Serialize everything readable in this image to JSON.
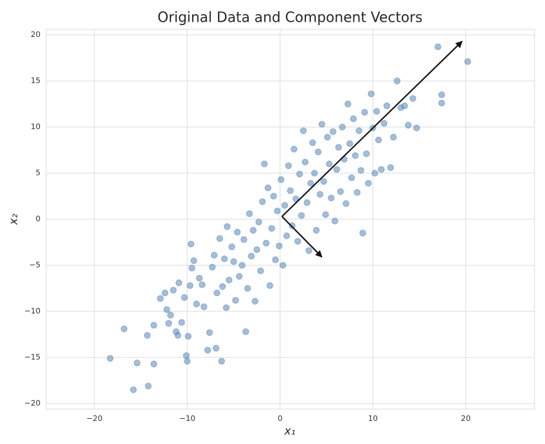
{
  "chart_data": {
    "type": "scatter",
    "title": "Original Data and Component Vectors",
    "x_label": "x₁",
    "y_label": "x₂",
    "xlim": [
      -25.2,
      27.4
    ],
    "ylim": [
      -20.6,
      20.6
    ],
    "xticks": [
      {
        "value": -20,
        "label": "−20"
      },
      {
        "value": -10,
        "label": "−10"
      },
      0,
      10,
      20
    ],
    "yticks": [
      {
        "value": -20,
        "label": "−20"
      },
      {
        "value": -15,
        "label": "−15"
      },
      {
        "value": -10,
        "label": "−10"
      },
      {
        "value": -5,
        "label": "−5"
      },
      0,
      5,
      10,
      15,
      20
    ],
    "grid": true,
    "color": "#4a7db4",
    "alpha": 0.5,
    "x": [
      -18.3,
      -16.8,
      -15.4,
      -15.8,
      -14.2,
      -14.3,
      -13.6,
      -13.6,
      -12.9,
      -12.4,
      -12.2,
      -12.0,
      -11.8,
      -11.2,
      -11.0,
      -11.5,
      -10.9,
      -10.6,
      -10.3,
      -10.1,
      -10.0,
      -9.9,
      -9.7,
      -9.5,
      -9.3,
      -9.6,
      -9.0,
      -8.7,
      -8.4,
      -8.2,
      -7.8,
      -7.6,
      -7.3,
      -7.1,
      -6.9,
      -6.8,
      -6.5,
      -6.3,
      -6.2,
      -6.0,
      -5.8,
      -5.7,
      -5.5,
      -5.2,
      -5.0,
      -4.8,
      -4.6,
      -4.4,
      -4.1,
      -3.9,
      -3.7,
      -3.5,
      -3.3,
      -3.1,
      -2.9,
      -2.7,
      -2.5,
      -2.3,
      -2.1,
      -1.9,
      -1.7,
      -1.5,
      -1.3,
      -1.1,
      -0.9,
      -0.7,
      -0.5,
      -0.3,
      -0.1,
      0.1,
      0.3,
      0.5,
      0.7,
      0.9,
      1.1,
      1.3,
      1.5,
      1.7,
      1.9,
      2.1,
      2.3,
      2.5,
      2.7,
      2.9,
      3.1,
      3.3,
      3.5,
      3.7,
      3.9,
      4.1,
      4.3,
      4.5,
      4.7,
      4.9,
      5.1,
      5.3,
      5.5,
      5.7,
      5.9,
      6.1,
      6.3,
      6.5,
      6.7,
      6.9,
      7.1,
      7.3,
      7.5,
      7.7,
      7.9,
      8.1,
      8.3,
      8.5,
      8.7,
      8.9,
      9.1,
      9.3,
      9.5,
      9.8,
      10.0,
      10.2,
      10.4,
      10.6,
      10.9,
      11.2,
      11.5,
      11.9,
      12.2,
      12.6,
      13.0,
      13.4,
      13.8,
      14.3,
      14.7,
      17.0,
      17.4,
      17.4,
      20.2
    ],
    "y": [
      -15.1,
      -11.9,
      -15.6,
      -18.5,
      -18.1,
      -12.6,
      -11.5,
      -15.7,
      -8.6,
      -8.0,
      -9.8,
      -11.3,
      -10.4,
      -12.2,
      -12.6,
      -7.7,
      -6.9,
      -11.2,
      -8.5,
      -14.8,
      -15.4,
      -12.7,
      -7.2,
      -5.3,
      -4.5,
      -2.7,
      -9.2,
      -6.4,
      -7.1,
      -9.5,
      -14.2,
      -12.3,
      -5.2,
      -3.9,
      -14.0,
      -8.0,
      -2.1,
      -15.4,
      -7.3,
      -4.3,
      -9.6,
      -0.8,
      -6.6,
      -3.0,
      -4.6,
      -8.8,
      -1.4,
      -6.2,
      -5.0,
      -2.2,
      -12.2,
      -7.5,
      0.6,
      -4.0,
      -1.2,
      -8.9,
      -3.3,
      -0.3,
      -5.6,
      1.9,
      6.0,
      -2.6,
      3.4,
      -7.2,
      -1.0,
      2.5,
      -4.4,
      0.9,
      -2.9,
      4.3,
      -5.0,
      1.5,
      -1.8,
      5.8,
      3.1,
      -0.7,
      7.6,
      2.2,
      -2.4,
      4.9,
      0.4,
      9.6,
      6.2,
      1.8,
      -3.4,
      3.9,
      8.3,
      5.0,
      -1.2,
      7.3,
      2.7,
      10.3,
      4.1,
      0.5,
      8.9,
      6.0,
      2.3,
      9.5,
      -0.2,
      5.4,
      7.8,
      3.0,
      10.0,
      6.5,
      1.7,
      12.5,
      8.2,
      4.5,
      10.9,
      6.9,
      2.9,
      9.6,
      5.3,
      -1.5,
      11.6,
      7.1,
      3.9,
      13.6,
      9.9,
      5.0,
      11.7,
      8.6,
      5.4,
      10.4,
      12.3,
      5.6,
      8.9,
      15.0,
      12.1,
      12.3,
      10.2,
      13.1,
      9.9,
      18.7,
      13.5,
      12.6,
      17.1
    ],
    "vectors": [
      {
        "start": [
          0.2,
          0.3
        ],
        "end": [
          19.6,
          19.3
        ]
      },
      {
        "start": [
          0.2,
          0.3
        ],
        "end": [
          4.5,
          -4.1
        ]
      }
    ],
    "vector_color": "#111111"
  }
}
